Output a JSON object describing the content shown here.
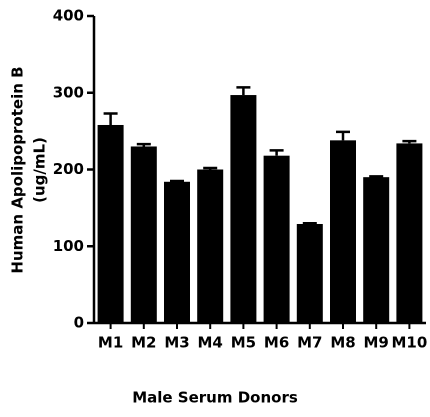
{
  "chart_data": {
    "type": "bar",
    "x_label": "Male Serum Donors",
    "y_label": [
      "Human Apolipoprotein B",
      "(ug/mL)"
    ],
    "categories": [
      "M1",
      "M2",
      "M3",
      "M4",
      "M5",
      "M6",
      "M7",
      "M8",
      "M9",
      "M10"
    ],
    "values": [
      258,
      230,
      184,
      200,
      297,
      218,
      129,
      238,
      190,
      234
    ],
    "errors": [
      15,
      3,
      1,
      2,
      10,
      7,
      1,
      11,
      1,
      3
    ],
    "color": "#000000",
    "ylim": [
      0,
      400
    ],
    "yticks": [
      0,
      100,
      200,
      300,
      400
    ]
  }
}
